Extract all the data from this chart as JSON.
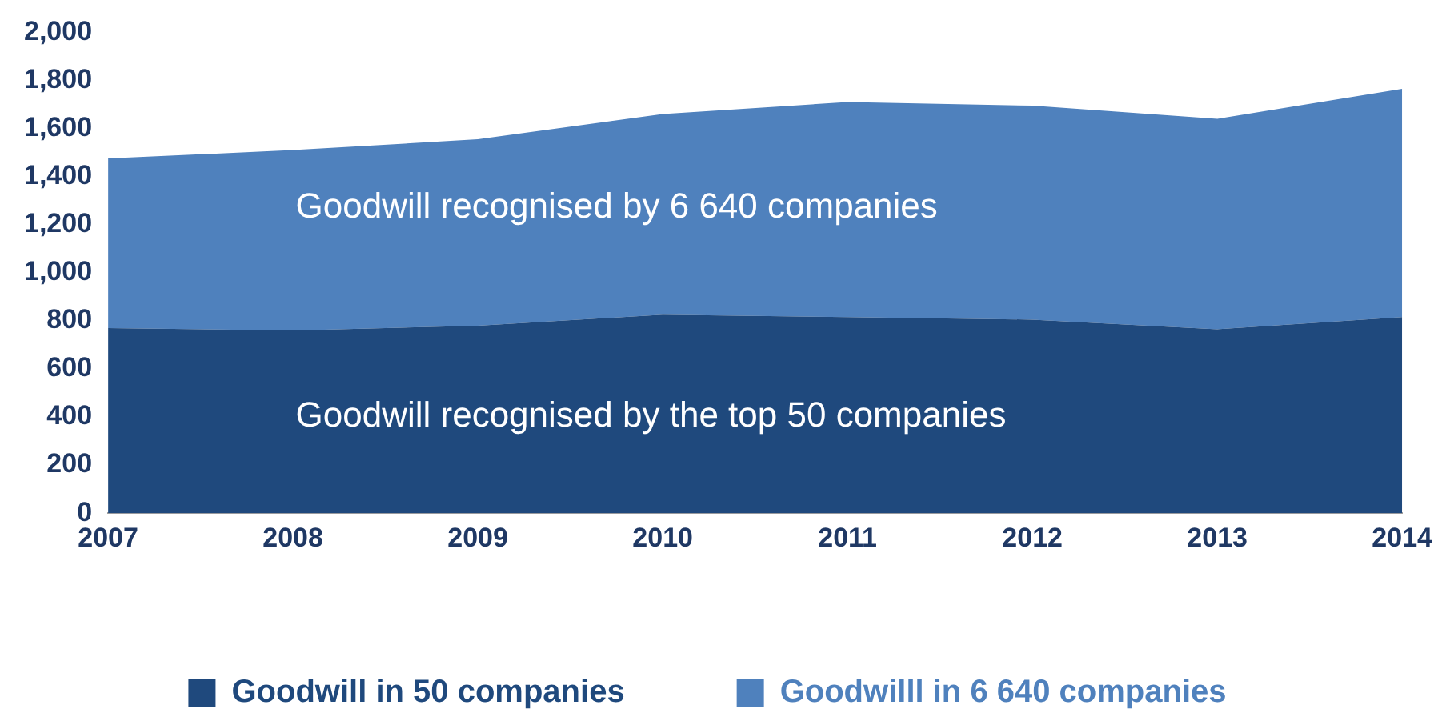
{
  "chart_data": {
    "type": "area",
    "stacked": true,
    "categories": [
      "2007",
      "2008",
      "2009",
      "2010",
      "2011",
      "2012",
      "2013",
      "2014"
    ],
    "series": [
      {
        "name": "Goodwill in 50 companies",
        "color": "#1f497d",
        "values": [
          770,
          760,
          780,
          825,
          815,
          805,
          765,
          815
        ]
      },
      {
        "name": "Goodwilll in 6 640 companies",
        "color": "#4f81bd",
        "values": [
          705,
          750,
          775,
          835,
          895,
          890,
          875,
          950
        ]
      }
    ],
    "ylim": [
      0,
      2000
    ],
    "yticks": [
      0,
      200,
      400,
      600,
      800,
      {
        "value": 1000,
        "label": "1,000"
      },
      {
        "value": 1200,
        "label": "1,200"
      },
      {
        "value": 1400,
        "label": "1,400"
      },
      {
        "value": 1600,
        "label": "1,600"
      },
      {
        "value": 1800,
        "label": "1,800"
      },
      {
        "value": 2000,
        "label": "2,000"
      }
    ],
    "grid": false,
    "legend": "bottom",
    "annotations": [
      "Goodwill recognised by 6 640 companies",
      "Goodwill recognised by the top 50 companies"
    ]
  }
}
